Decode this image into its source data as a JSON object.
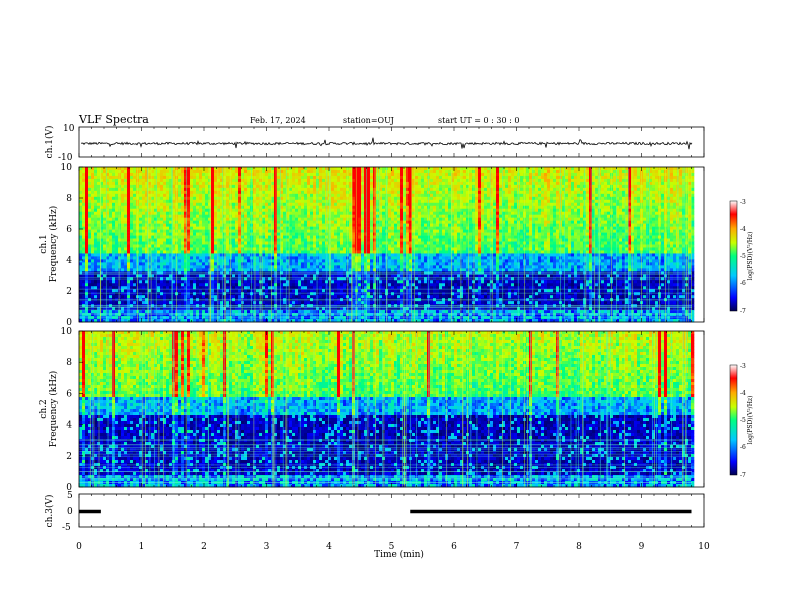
{
  "header": {
    "title": "VLF Spectra",
    "date": "Feb. 17, 2024",
    "station": "station=OUJ",
    "start": "start  UT =   0 : 30 : 0"
  },
  "colors": {
    "spectrogram_scale": [
      "#000050",
      "#0000ff",
      "#00c8ff",
      "#00ff7f",
      "#c8ff00",
      "#ffaa00",
      "#ff0000",
      "#ffffff"
    ]
  },
  "chart_data": [
    {
      "type": "line",
      "ylabel": "ch.1(V)",
      "ylim": [
        -10,
        10
      ],
      "yticks": [
        "10",
        "-10"
      ],
      "xlim": [
        0,
        10
      ],
      "baseline": -1,
      "noise_amplitude": 1
    },
    {
      "type": "heatmap",
      "ylabel": "ch.1\nFrequency (kHz)",
      "ylabel_line1": "ch.1",
      "ylabel_line2": "Frequency (kHz)",
      "ylim": [
        0,
        10
      ],
      "yticks": [
        "0",
        "2",
        "4",
        "6",
        "8",
        "10"
      ],
      "xlim": [
        0,
        10
      ],
      "colorbar": {
        "label": "log(PSD)(V²/Hz)",
        "range": [
          -7,
          -3
        ],
        "ticks": [
          "-3",
          "-4",
          "-5",
          "-6",
          "-7"
        ]
      }
    },
    {
      "type": "heatmap",
      "ylabel": "ch.2\nFrequency (kHz)",
      "ylabel_line1": "ch.2",
      "ylabel_line2": "Frequency (kHz)",
      "ylim": [
        0,
        10
      ],
      "yticks": [
        "0",
        "2",
        "4",
        "6",
        "8",
        "10"
      ],
      "xlim": [
        0,
        10
      ],
      "colorbar": {
        "label": "log(PSD)(V²/Hz)",
        "range": [
          -7,
          -3
        ],
        "ticks": [
          "-3",
          "-4",
          "-5",
          "-6",
          "-7"
        ]
      }
    },
    {
      "type": "line",
      "ylabel": "ch.3(V)",
      "ylim": [
        -5,
        5
      ],
      "yticks": [
        "5",
        "0",
        "-5"
      ],
      "xlim": [
        0,
        10
      ],
      "segments": [
        {
          "x0": 0,
          "x1": 0.35,
          "y": 0
        },
        {
          "x0": 5.3,
          "x1": 9.8,
          "y": 0
        }
      ],
      "xlabel": "Time (min)",
      "xticks": [
        "0",
        "1",
        "2",
        "3",
        "4",
        "5",
        "6",
        "7",
        "8",
        "9",
        "10"
      ]
    }
  ]
}
